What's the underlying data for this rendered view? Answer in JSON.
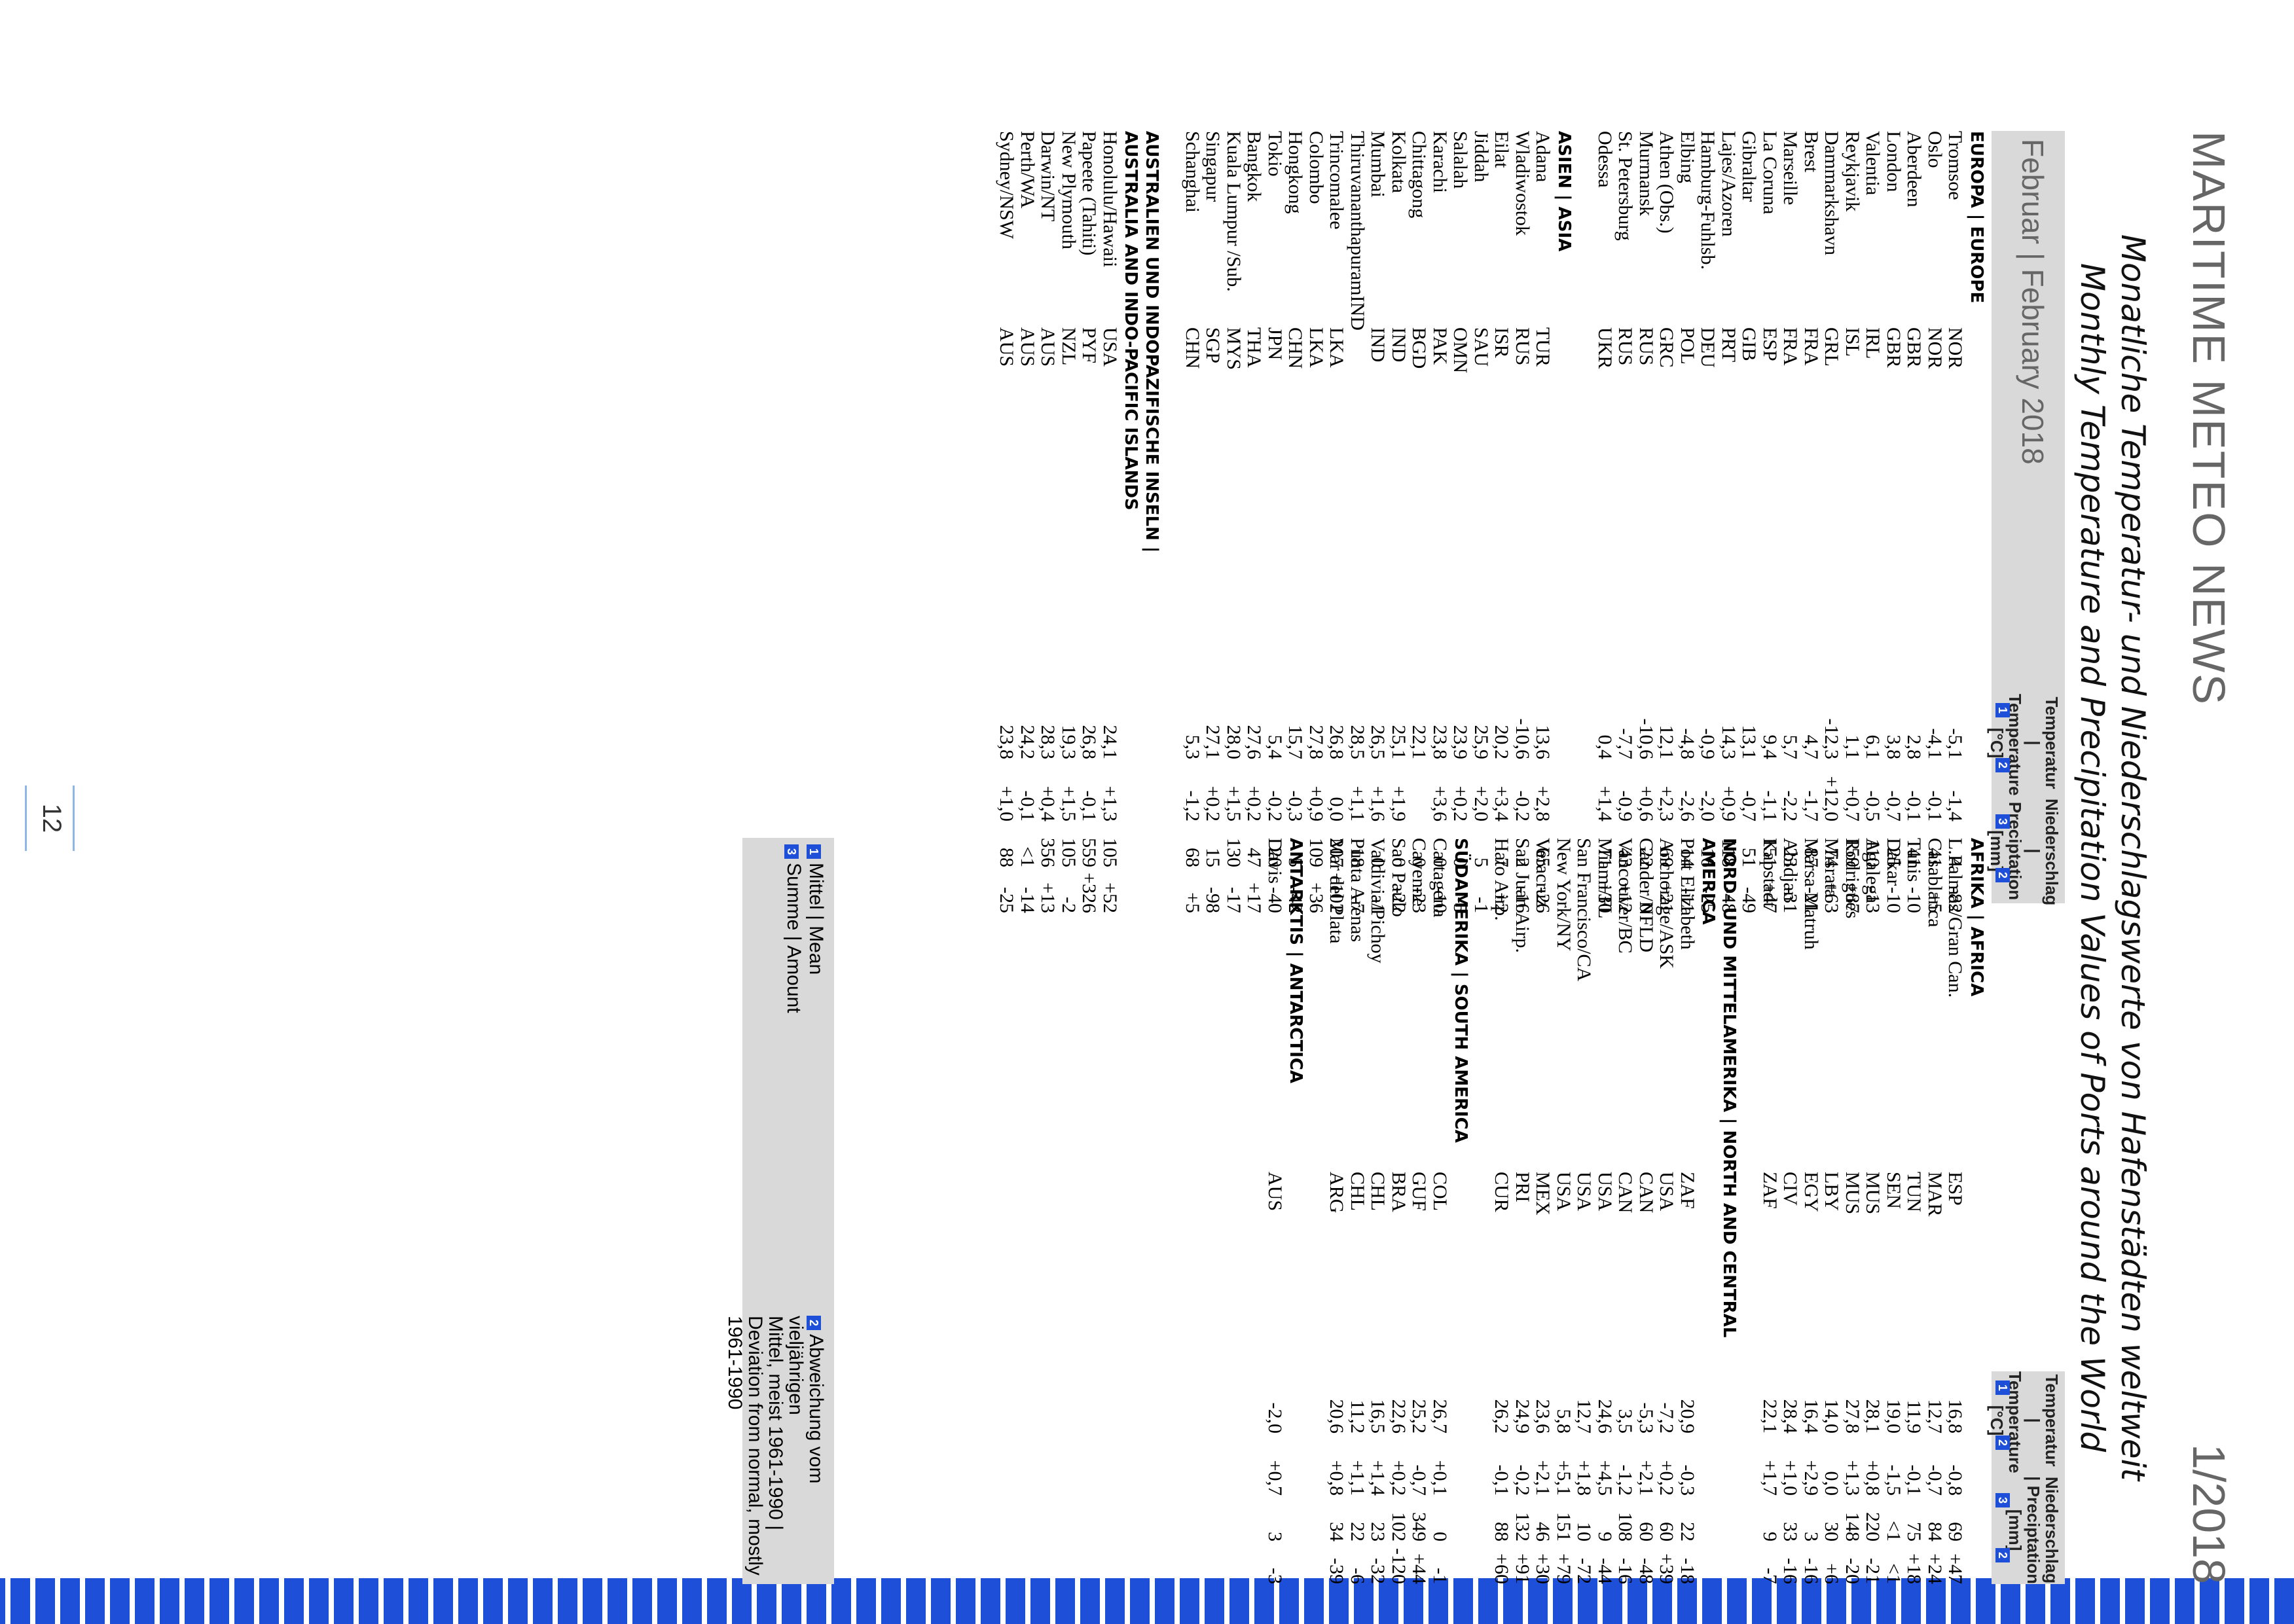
{
  "header": {
    "magazine": "MARITIME METEO NEWS",
    "issue": "1/2018"
  },
  "title": {
    "de": "Monatliche Temperatur- und Niederschlagswerte von Hafenstädten weltweit",
    "en": "Monthly Temperature and Precipitation Values of Ports around the World"
  },
  "month_label": "Februar | February 2018",
  "col_headers": {
    "temp": "Temperatur | Temperature [°C]",
    "prec": "Niederschlag | Preciptation [mm]",
    "n1": "1",
    "n2": "2",
    "n3": "3",
    "n4": "2"
  },
  "left_table": [
    {
      "type": "section",
      "name": "EUROPA | EUROPE"
    },
    {
      "name": "Tromsoe",
      "cc": "NOR",
      "t": "-5,1",
      "td": "-1,4",
      "p": "4",
      "pd": "-82"
    },
    {
      "name": "Oslo",
      "cc": "NOR",
      "t": "-4,1",
      "td": "-0,1",
      "p": "41",
      "pd": "+5"
    },
    {
      "name": "Aberdeen",
      "cc": "GBR",
      "t": "2,8",
      "td": "-0,1",
      "p": "41",
      "pd": "-10"
    },
    {
      "name": "London",
      "cc": "GBR",
      "t": "3,8",
      "td": "-0,7",
      "p": "25",
      "pd": "-10"
    },
    {
      "name": "Valentia",
      "cc": "IRL",
      "t": "6,1",
      "td": "-0,5",
      "p": "110",
      "pd": "-13"
    },
    {
      "name": "Reykjavik",
      "cc": "ISL",
      "t": "1,1",
      "td": "+0,7",
      "p": "159",
      "pd": "+87"
    },
    {
      "name": "Dammarkshavn",
      "cc": "GRL",
      "t": "-12,3",
      "td": "+12,0",
      "p": "74",
      "pd": "+63"
    },
    {
      "name": "Brest",
      "cc": "FRA",
      "t": "4,7",
      "td": "-1,7",
      "p": "87",
      "pd": "-21"
    },
    {
      "name": "Marseille",
      "cc": "FRA",
      "t": "5,7",
      "td": "-2,2",
      "p": "23",
      "pd": "-31"
    },
    {
      "name": "La Coruna",
      "cc": "ESP",
      "t": "9,4",
      "td": "-1,1",
      "p": "151",
      "pd": "+47"
    },
    {
      "name": "Gibraltar",
      "cc": "GIB",
      "t": "13,1",
      "td": "-0,7",
      "p": "51",
      "pd": "-49"
    },
    {
      "name": "Lajes/Azoren",
      "cc": "PRT",
      "t": "14,3",
      "td": "+0,9",
      "p": "118",
      "pd": "-48"
    },
    {
      "name": "Hamburg-Fuhlsb.",
      "cc": "DEU",
      "t": "-0,9",
      "td": "-2,0",
      "p": "16",
      "pd": "-25"
    },
    {
      "name": "Elbing",
      "cc": "POL",
      "t": "-4,8",
      "td": "-2,6",
      "p": "14",
      "pd": "-11"
    },
    {
      "name": "Athen (Obs.)",
      "cc": "GRC",
      "t": "12,1",
      "td": "+2,3",
      "p": "69",
      "pd": "+21"
    },
    {
      "name": "Murmansk",
      "cc": "RUS",
      "t": "-10,6",
      "td": "+0,6",
      "p": "22",
      "pd": "0"
    },
    {
      "name": "St. Petersburg",
      "cc": "RUS",
      "t": "-7,7",
      "td": "-0,9",
      "p": "43",
      "pd": "+12"
    },
    {
      "name": "Odessa",
      "cc": "UKR",
      "t": "0,4",
      "td": "+1,4",
      "p": "71",
      "pd": "+30"
    },
    {
      "type": "blank"
    },
    {
      "type": "section",
      "name": "ASIEN | ASIA"
    },
    {
      "name": "Adana",
      "cc": "TUR",
      "t": "13,6",
      "td": "+2,8",
      "p": "65",
      "pd": "-26"
    },
    {
      "name": "Wladiwostok",
      "cc": "RUS",
      "t": "-10,6",
      "td": "-0,2",
      "p": "2",
      "pd": "-16"
    },
    {
      "name": "Eilat",
      "cc": "ISR",
      "t": "20,2",
      "td": "+3,4",
      "p": "7",
      "pd": "+2"
    },
    {
      "name": "Jiddah",
      "cc": "SAU",
      "t": "25,9",
      "td": "+2,0",
      "p": "5",
      "pd": "-1"
    },
    {
      "name": "Salalah",
      "cc": "OMN",
      "t": "23,9",
      "td": "+0,2",
      "p": "0",
      "pd": "-5"
    },
    {
      "name": "Karachi",
      "cc": "PAK",
      "t": "23,8",
      "td": "+3,6",
      "p": "0",
      "pd": "-10"
    },
    {
      "name": "Chittagong",
      "cc": "BGD",
      "t": "22,1",
      "td": "",
      "p": "0",
      "pd": "-23"
    },
    {
      "name": "Kolkata",
      "cc": "IND",
      "t": "25,1",
      "td": "+1,9",
      "p": "0",
      "pd": "-22"
    },
    {
      "name": "Mumbai",
      "cc": "IND",
      "t": "26,5",
      "td": "+1,6",
      "p": "0",
      "pd": "-1"
    },
    {
      "name": "ThiruvananthapuramIND",
      "cc": "",
      "t": "28,5",
      "td": "+1,1",
      "p": "18",
      "pd": "-7"
    },
    {
      "name": "Trincomalee",
      "cc": "LKA",
      "t": "26,8",
      "td": "0,0",
      "p": "207",
      "pd": "+102"
    },
    {
      "name": "Colombo",
      "cc": "LKA",
      "t": "27,8",
      "td": "+0,9",
      "p": "109",
      "pd": "+36"
    },
    {
      "name": "Hongkong",
      "cc": "CHN",
      "t": "15,7",
      "td": "-0,3",
      "p": "5",
      "pd": "-42"
    },
    {
      "name": "Tokio",
      "cc": "JPN",
      "t": "5,4",
      "td": "-0,2",
      "p": "20",
      "pd": "-40"
    },
    {
      "name": "Bangkok",
      "cc": "THA",
      "t": "27,6",
      "td": "+0,2",
      "p": "47",
      "pd": "+17"
    },
    {
      "name": "Kuala Lumpur /Sub.",
      "cc": "MYS",
      "t": "28,0",
      "td": "+1,5",
      "p": "130",
      "pd": "-17"
    },
    {
      "name": "Singapur",
      "cc": "SGP",
      "t": "27,1",
      "td": "+0,2",
      "p": "15",
      "pd": "-98"
    },
    {
      "name": "Schanghai",
      "cc": "CHN",
      "t": "5,3",
      "td": "-1,2",
      "p": "68",
      "pd": "+5"
    },
    {
      "type": "blank"
    },
    {
      "type": "section",
      "name": "AUSTRALIEN UND INDOPAZIFISCHE INSELN |"
    },
    {
      "type": "section",
      "name": "AUSTRALIA AND INDO-PACIFIC ISLANDS"
    },
    {
      "name": "Honolulu/Hawaii",
      "cc": "USA",
      "t": "24,1",
      "td": "+1,3",
      "p": "105",
      "pd": "+52"
    },
    {
      "name": "Papeete (Tahiti)",
      "cc": "PYF",
      "t": "26,8",
      "td": "-0,1",
      "p": "559",
      "pd": "+326"
    },
    {
      "name": "New Plymouth",
      "cc": "NZL",
      "t": "19,3",
      "td": "+1,5",
      "p": "105",
      "pd": "-2"
    },
    {
      "name": "Darwin/NT",
      "cc": "AUS",
      "t": "28,3",
      "td": "+0,4",
      "p": "356",
      "pd": "+13"
    },
    {
      "name": "Perth/WA",
      "cc": "AUS",
      "t": "24,2",
      "td": "-0,1",
      "p": "<1",
      "pd": "-14"
    },
    {
      "name": "Sydney/NSW",
      "cc": "AUS",
      "t": "23,8",
      "td": "+1,0",
      "p": "88",
      "pd": "-25"
    }
  ],
  "right_table": [
    {
      "type": "section",
      "name": "AFRIKA | AFRICA"
    },
    {
      "name": "L.Palmas/Gran Can.",
      "cc": "ESP",
      "t": "16,8",
      "td": "-0,8",
      "p": "69",
      "pd": "+47"
    },
    {
      "name": "Casablanca",
      "cc": "MAR",
      "t": "12,7",
      "td": "-0,7",
      "p": "84",
      "pd": "+24"
    },
    {
      "name": "Tunis",
      "cc": "TUN",
      "t": "11,9",
      "td": "-0,1",
      "p": "75",
      "pd": "+18"
    },
    {
      "name": "Dakar",
      "cc": "SEN",
      "t": "19,0",
      "td": "-1,5",
      "p": "<1",
      "pd": "<1"
    },
    {
      "name": "Agalega",
      "cc": "MUS",
      "t": "28,1",
      "td": "+0,8",
      "p": "220",
      "pd": "-21"
    },
    {
      "name": "Rodrigues",
      "cc": "MUS",
      "t": "27,8",
      "td": "+1,3",
      "p": "148",
      "pd": "-20"
    },
    {
      "name": "Misrata",
      "cc": "LBY",
      "t": "14,0",
      "td": "0,0",
      "p": "30",
      "pd": "+6"
    },
    {
      "name": "Marsa Matruh",
      "cc": "EGY",
      "t": "16,4",
      "td": "+2,9",
      "p": "3",
      "pd": "-16"
    },
    {
      "name": "Abidjan",
      "cc": "CIV",
      "t": "28,4",
      "td": "+1,0",
      "p": "33",
      "pd": "-16"
    },
    {
      "name": "Kapstadt",
      "cc": "ZAF",
      "t": "22,1",
      "td": "+1,7",
      "p": "9",
      "pd": "-7"
    },
    {
      "type": "blank"
    },
    {
      "type": "section",
      "name": "NORD- UND MITTELAMERIKA | NORTH AND CENTRAL"
    },
    {
      "type": "section",
      "name": "AMERICA"
    },
    {
      "name": "Port Elizabeth",
      "cc": "ZAF",
      "t": "20,9",
      "td": "-0,3",
      "p": "22",
      "pd": "-18"
    },
    {
      "name": "Anchorage/ASK",
      "cc": "USA",
      "t": "-7,2",
      "td": "+0,2",
      "p": "60",
      "pd": "+39"
    },
    {
      "name": "Gander/NFLD",
      "cc": "CAN",
      "t": "-5,3",
      "td": "+2,1",
      "p": "60",
      "pd": "-48"
    },
    {
      "name": "Vancouver/BC",
      "cc": "CAN",
      "t": "3,5",
      "td": "-1,2",
      "p": "108",
      "pd": "-16"
    },
    {
      "name": "Miami/FL",
      "cc": "USA",
      "t": "24,6",
      "td": "+4,5",
      "p": "9",
      "pd": "-44"
    },
    {
      "name": "San Francisco/CA",
      "cc": "USA",
      "t": "12,7",
      "td": "+1,8",
      "p": "10",
      "pd": "-72"
    },
    {
      "name": "New York/NY",
      "cc": "USA",
      "t": "5,8",
      "td": "+5,1",
      "p": "151",
      "pd": "+79"
    },
    {
      "name": "Veracruz",
      "cc": "MEX",
      "t": "23,6",
      "td": "+2,1",
      "p": "46",
      "pd": "+30"
    },
    {
      "name": "San Juan Airp.",
      "cc": "PRI",
      "t": "24,9",
      "td": "-0,2",
      "p": "132",
      "pd": "+91"
    },
    {
      "name": "Hato Airp.",
      "cc": "CUR",
      "t": "26,2",
      "td": "-0,1",
      "p": "88",
      "pd": "+60"
    },
    {
      "type": "blank"
    },
    {
      "type": "section",
      "name": "SÜDAMERIKA | SOUTH AMERICA"
    },
    {
      "name": "Cartagena",
      "cc": "COL",
      "t": "26,7",
      "td": "+0,1",
      "p": "0",
      "pd": "-1"
    },
    {
      "name": "Cayenne",
      "cc": "GUF",
      "t": "25,2",
      "td": "-0,7",
      "p": "349",
      "pd": "+44"
    },
    {
      "name": "Sao Paulo",
      "cc": "BRA",
      "t": "22,6",
      "td": "+0,2",
      "p": "102",
      "pd": "-120"
    },
    {
      "name": "Valdivia/Pichoy",
      "cc": "CHL",
      "t": "16,5",
      "td": "+1,4",
      "p": "23",
      "pd": "-32"
    },
    {
      "name": "Punta Arenas",
      "cc": "CHL",
      "t": "11,2",
      "td": "+1,1",
      "p": "22",
      "pd": "-6"
    },
    {
      "name": "Mar del Plata",
      "cc": "ARG",
      "t": "20,6",
      "td": "+0,8",
      "p": "34",
      "pd": "-39"
    },
    {
      "type": "blank"
    },
    {
      "type": "section",
      "name": "ANTARKTIS | ANTARCTICA"
    },
    {
      "name": "Davis",
      "cc": "AUS",
      "t": "-2,0",
      "td": "+0,7",
      "p": "3",
      "pd": "-3"
    }
  ],
  "legend": {
    "n1": "1",
    "l1": "Mittel | Mean",
    "n2": "2",
    "l2a": "Abweichung vom vieljährigen",
    "l2b": "Mittel, meist 1961-1990 |",
    "l2c": "Deviation from normal, mostly",
    "l2d": "1961-1990",
    "n3": "3",
    "l3": "Summe | Amount"
  },
  "page_number": "12",
  "colors": {
    "accent": "#1e4fd8",
    "panel": "#d9d9d9"
  }
}
